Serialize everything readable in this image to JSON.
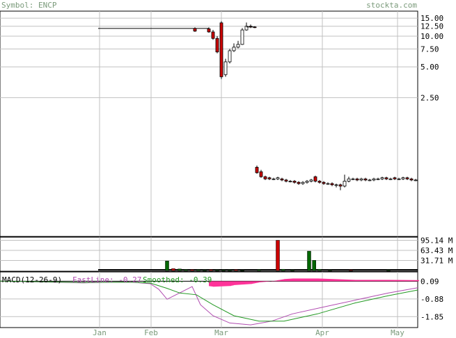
{
  "header": {
    "symbol_label": "Symbol: ENCP",
    "site": "stockta.com"
  },
  "colors": {
    "header_text": "#7a9a7a",
    "up_candle": "#ffffff",
    "down_candle": "#cc0000",
    "volume_up": "#006600",
    "volume_down": "#cc0000",
    "macd_hist": "#ff3399",
    "fastline": "#b04ab0",
    "smoothed": "#229922",
    "grid": "#c0c0c0"
  },
  "chart_data": [
    {
      "type": "candlestick",
      "name": "price",
      "y_scale": "log",
      "y_ticks": [
        "15.00",
        "12.50",
        "10.00",
        "7.50",
        "5.00",
        "2.50"
      ],
      "y_tick_values": [
        15,
        12.5,
        10,
        7.5,
        5,
        2.5
      ],
      "x_labels": [
        "Jan",
        "Feb",
        "Mar",
        "Apr",
        "May"
      ],
      "segments": [
        {
          "start": 0.0,
          "end": 0.38,
          "open": 11.9,
          "close": 11.9,
          "note": "flat prior to gap"
        },
        {
          "start": 0.38,
          "end": 0.46,
          "pattern": "drop-and-recover",
          "low": 3.9,
          "high": 13.5
        },
        {
          "start": 0.46,
          "end": 0.62,
          "level": 0.45,
          "drop": true
        },
        {
          "start": 0.62,
          "end": 1.0,
          "level": 0.45
        }
      ]
    },
    {
      "type": "bar",
      "name": "volume",
      "y_ticks": [
        "95.14 M",
        "63.43 M",
        "31.71 M"
      ],
      "y_tick_values": [
        95.14,
        63.43,
        31.71
      ],
      "values_m": [
        {
          "x": 0.4,
          "v": 30,
          "color": "up"
        },
        {
          "x": 0.415,
          "v": 6,
          "color": "down"
        },
        {
          "x": 0.43,
          "v": 5,
          "color": "up"
        },
        {
          "x": 0.445,
          "v": 3,
          "color": "up"
        },
        {
          "x": 0.46,
          "v": 3,
          "color": "down"
        },
        {
          "x": 0.475,
          "v": 3,
          "color": "up"
        },
        {
          "x": 0.49,
          "v": 2,
          "color": "up"
        },
        {
          "x": 0.505,
          "v": 3,
          "color": "down"
        },
        {
          "x": 0.52,
          "v": 2,
          "color": "up"
        },
        {
          "x": 0.535,
          "v": 2,
          "color": "up"
        },
        {
          "x": 0.55,
          "v": 2,
          "color": "up"
        },
        {
          "x": 0.565,
          "v": 3,
          "color": "down"
        },
        {
          "x": 0.58,
          "v": 1,
          "color": "up"
        },
        {
          "x": 0.62,
          "v": 3,
          "color": "up"
        },
        {
          "x": 0.665,
          "v": 95.14,
          "color": "down"
        },
        {
          "x": 0.678,
          "v": 4,
          "color": "up"
        },
        {
          "x": 0.7,
          "v": 2,
          "color": "up"
        },
        {
          "x": 0.74,
          "v": 61,
          "color": "up"
        },
        {
          "x": 0.752,
          "v": 32,
          "color": "up"
        },
        {
          "x": 0.765,
          "v": 4,
          "color": "up"
        },
        {
          "x": 0.79,
          "v": 2,
          "color": "up"
        },
        {
          "x": 0.84,
          "v": 2,
          "color": "down"
        },
        {
          "x": 0.93,
          "v": 2,
          "color": "up"
        }
      ]
    },
    {
      "type": "line",
      "name": "macd",
      "title": "MACD(12-26-9)",
      "fastline_label": "FastLine: -0.27",
      "smoothed_label": "Smoothed: -0.39",
      "y_ticks": [
        "0.09",
        "-0.88",
        "-1.85"
      ],
      "y_tick_values": [
        0.09,
        -0.88,
        -1.85
      ],
      "series": [
        {
          "name": "FastLine",
          "points": [
            [
              0.0,
              0.1
            ],
            [
              0.2,
              0.0
            ],
            [
              0.31,
              0.05
            ],
            [
              0.36,
              -0.05
            ],
            [
              0.38,
              -0.35
            ],
            [
              0.4,
              -0.9
            ],
            [
              0.43,
              -0.55
            ],
            [
              0.46,
              -0.2
            ],
            [
              0.48,
              -1.2
            ],
            [
              0.51,
              -1.8
            ],
            [
              0.55,
              -2.2
            ],
            [
              0.6,
              -2.3
            ],
            [
              0.65,
              -2.1
            ],
            [
              0.7,
              -1.7
            ],
            [
              0.78,
              -1.3
            ],
            [
              0.86,
              -0.9
            ],
            [
              0.93,
              -0.55
            ],
            [
              1.0,
              -0.27
            ]
          ]
        },
        {
          "name": "Smoothed",
          "points": [
            [
              0.0,
              0.1
            ],
            [
              0.2,
              0.02
            ],
            [
              0.31,
              0.04
            ],
            [
              0.36,
              -0.01
            ],
            [
              0.4,
              -0.3
            ],
            [
              0.43,
              -0.55
            ],
            [
              0.47,
              -0.65
            ],
            [
              0.51,
              -1.2
            ],
            [
              0.56,
              -1.8
            ],
            [
              0.62,
              -2.1
            ],
            [
              0.68,
              -2.1
            ],
            [
              0.76,
              -1.7
            ],
            [
              0.85,
              -1.1
            ],
            [
              0.93,
              -0.7
            ],
            [
              1.0,
              -0.39
            ]
          ]
        }
      ]
    }
  ]
}
